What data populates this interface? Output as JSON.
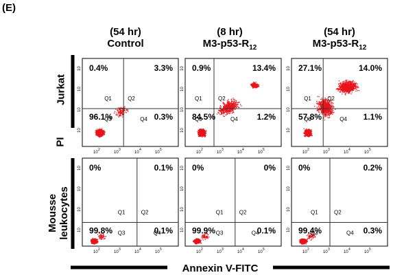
{
  "figure": {
    "panel_label": "(E)",
    "x_axis_label": "Annexin V-FITC",
    "y_axis_label": "PI",
    "row_labels": [
      "Jurkat",
      "Mousse\nleukocytes"
    ],
    "columns": [
      {
        "time": "(54 hr)",
        "name": "Control",
        "subscript": ""
      },
      {
        "time": "(8 hr)",
        "name": "M3-p53-R",
        "subscript": "12"
      },
      {
        "time": "(54 hr)",
        "name": "M3-p53-R",
        "subscript": "12"
      }
    ],
    "quadrant_names": [
      "Q1",
      "Q2",
      "Q3",
      "Q4"
    ],
    "x_tick_labels": [
      "10",
      "10",
      "10",
      "10",
      "10"
    ],
    "x_tick_exponents": [
      "2",
      "3",
      "4",
      "5"
    ],
    "y_tick_exponents": [
      "2",
      "3",
      "4",
      "5"
    ]
  },
  "chart_data": [
    {
      "type": "scatter",
      "row": "Jurkat",
      "column": "(54 hr) Control",
      "quadrants": {
        "Q1": "0.4%",
        "Q2": "3.3%",
        "Q3": "96.1%",
        "Q4": "0.3%"
      }
    },
    {
      "type": "scatter",
      "row": "Jurkat",
      "column": "(8 hr) M3-p53-R12",
      "quadrants": {
        "Q1": "0.9%",
        "Q2": "13.4%",
        "Q3": "84.5%",
        "Q4": "1.2%"
      }
    },
    {
      "type": "scatter",
      "row": "Jurkat",
      "column": "(54 hr) M3-p53-R12",
      "quadrants": {
        "Q1": "27.1%",
        "Q2": "14.0%",
        "Q3": "57.8%",
        "Q4": "1.1%"
      }
    },
    {
      "type": "scatter",
      "row": "Mousse leukocytes",
      "column": "(54 hr) Control",
      "quadrants": {
        "Q1": "0%",
        "Q2": "0.1%",
        "Q3": "99.8%",
        "Q4": "0.1%"
      }
    },
    {
      "type": "scatter",
      "row": "Mousse leukocytes",
      "column": "(8 hr) M3-p53-R12",
      "quadrants": {
        "Q1": "0%",
        "Q2": "0%",
        "Q3": "99.9%",
        "Q4": "0.1%"
      }
    },
    {
      "type": "scatter",
      "row": "Mousse leukocytes",
      "column": "(54 hr) M3-p53-R12",
      "quadrants": {
        "Q1": "0%",
        "Q2": "0.2%",
        "Q3": "99.4%",
        "Q4": "0.3%"
      }
    }
  ],
  "colors": {
    "dots": "#e8141c",
    "frame": "#000000",
    "gate": "#333333"
  }
}
